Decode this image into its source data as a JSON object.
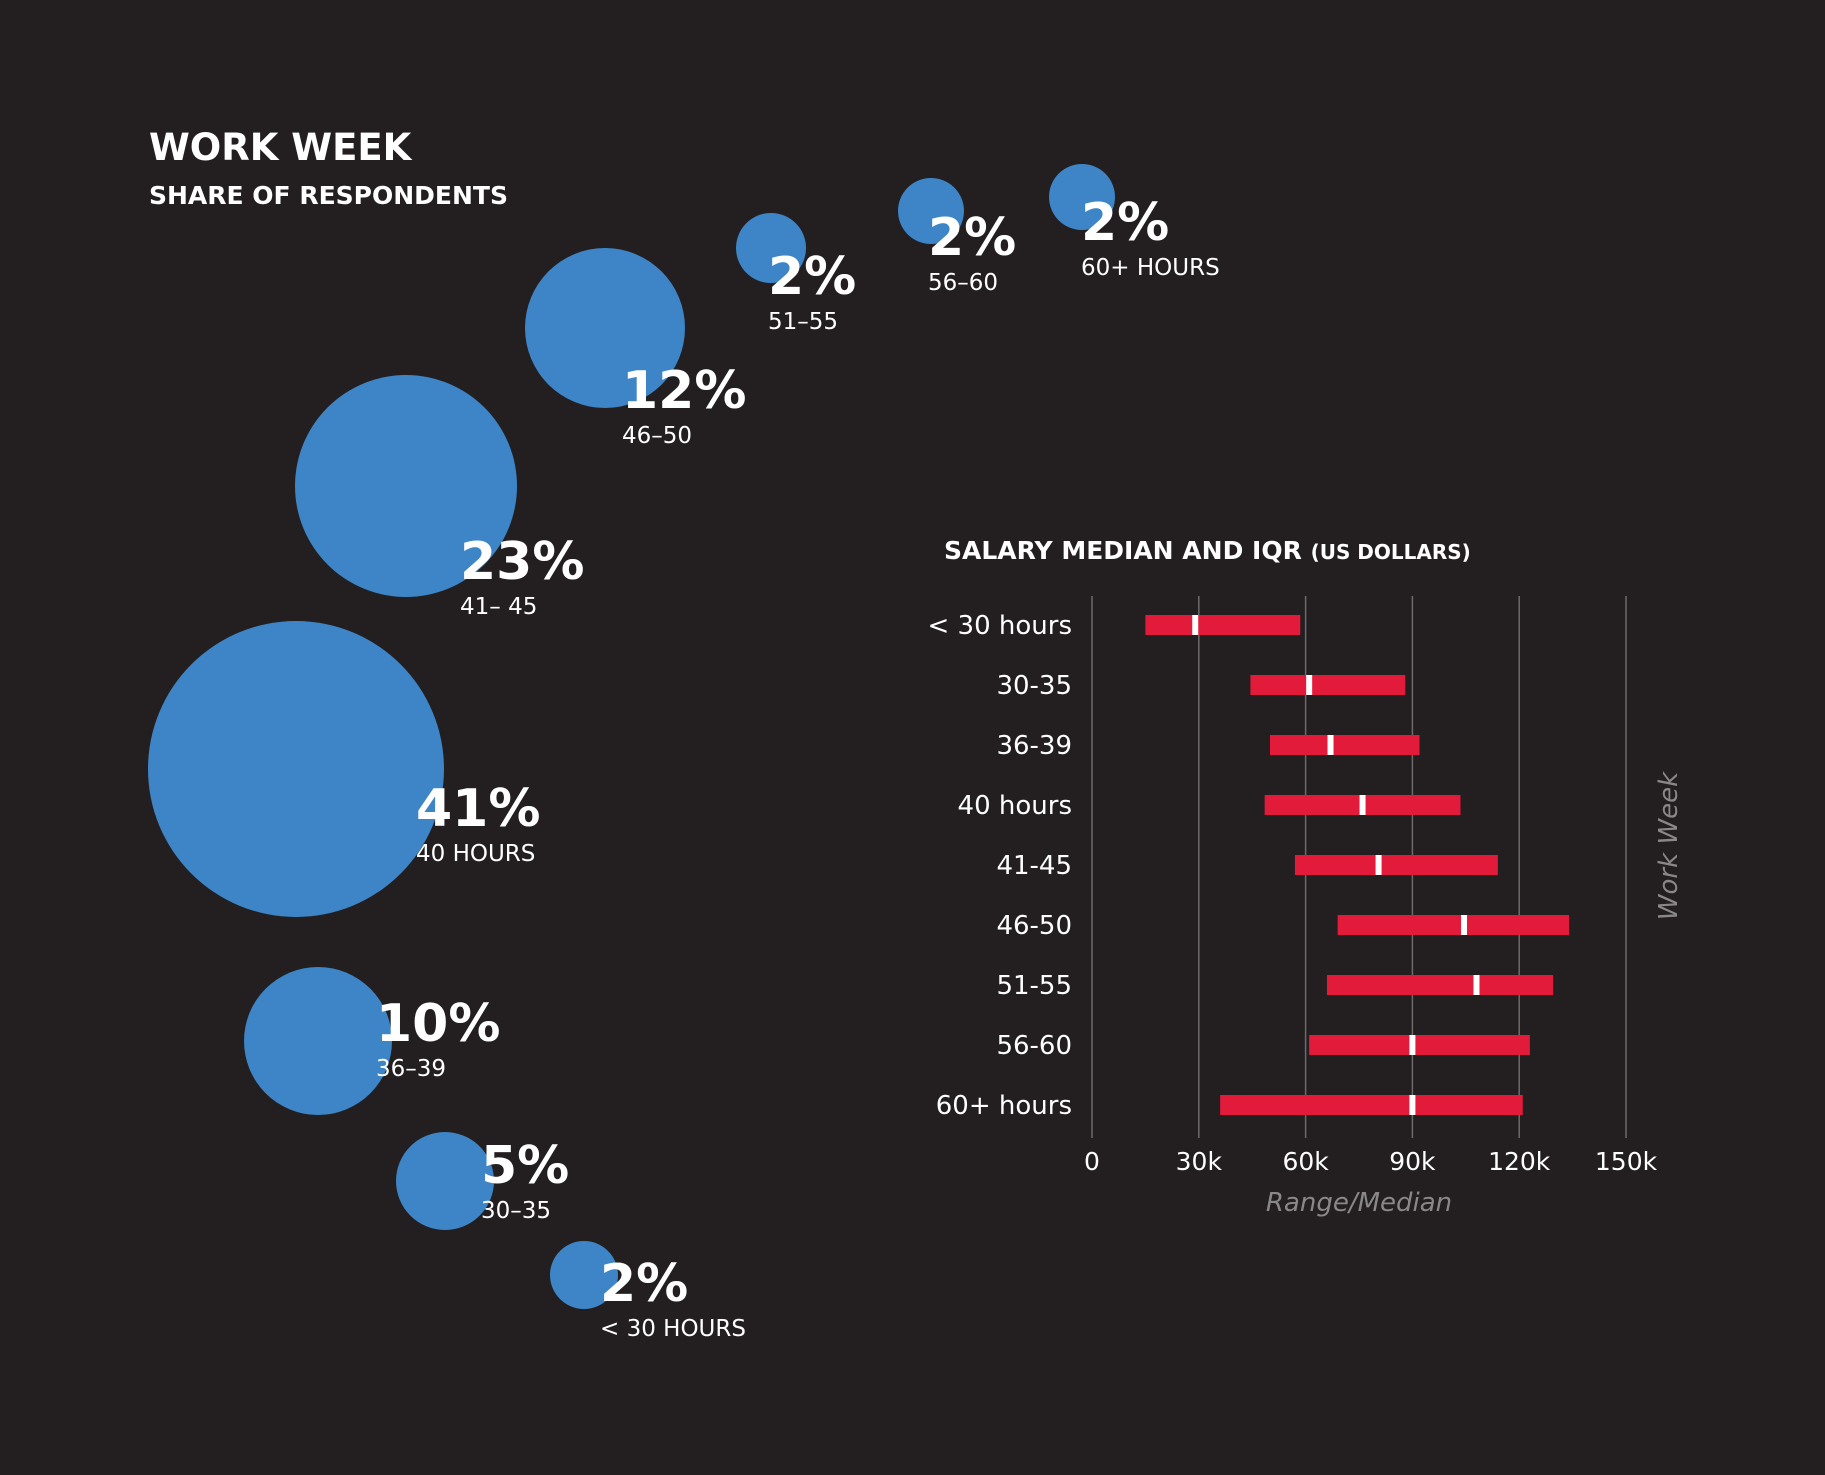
{
  "colors": {
    "background": "#231f20",
    "bubble": "#3d85c6",
    "bar": "#e31b3b",
    "median_mark": "#ffffff",
    "grid": "#6d6a6b",
    "axis_title": "#8a8788"
  },
  "chart_data": [
    {
      "type": "bubble",
      "title": "WORK WEEK",
      "subtitle": "SHARE OF RESPONDENTS",
      "items": [
        {
          "label": "60+ HOURS",
          "value_label": "2%",
          "value": 2
        },
        {
          "label": "56–60",
          "value_label": "2%",
          "value": 2
        },
        {
          "label": "51–55",
          "value_label": "2%",
          "value": 2
        },
        {
          "label": "46–50",
          "value_label": "12%",
          "value": 12
        },
        {
          "label": "41– 45",
          "value_label": "23%",
          "value": 23
        },
        {
          "label": "40 HOURS",
          "value_label": "41%",
          "value": 41
        },
        {
          "label": "36–39",
          "value_label": "10%",
          "value": 10
        },
        {
          "label": "30–35",
          "value_label": "5%",
          "value": 5
        },
        {
          "label": "< 30 HOURS",
          "value_label": "2%",
          "value": 2
        }
      ]
    },
    {
      "type": "range_bar",
      "title": "SALARY MEDIAN AND IQR",
      "title_unit": "(US DOLLARS)",
      "xlabel": "Range/Median",
      "ylabel": "Work Week",
      "xlim": [
        0,
        150000
      ],
      "x_ticks": [
        0,
        30000,
        60000,
        90000,
        120000,
        150000
      ],
      "x_tick_labels": [
        "0",
        "30k",
        "60k",
        "90k",
        "120k",
        "150k"
      ],
      "grid": true,
      "categories": [
        "< 30 hours",
        "30-35",
        "36-39",
        "40 hours",
        "41-45",
        "46-50",
        "51-55",
        "56-60",
        "60+ hours"
      ],
      "q1": [
        15000,
        44500,
        50000,
        48500,
        57000,
        69000,
        66000,
        61000,
        36000
      ],
      "median": [
        29000,
        61000,
        67000,
        76000,
        80500,
        104500,
        108000,
        90000,
        90000
      ],
      "q3": [
        58500,
        88000,
        92000,
        103500,
        114000,
        134000,
        129500,
        123000,
        121000
      ]
    }
  ]
}
